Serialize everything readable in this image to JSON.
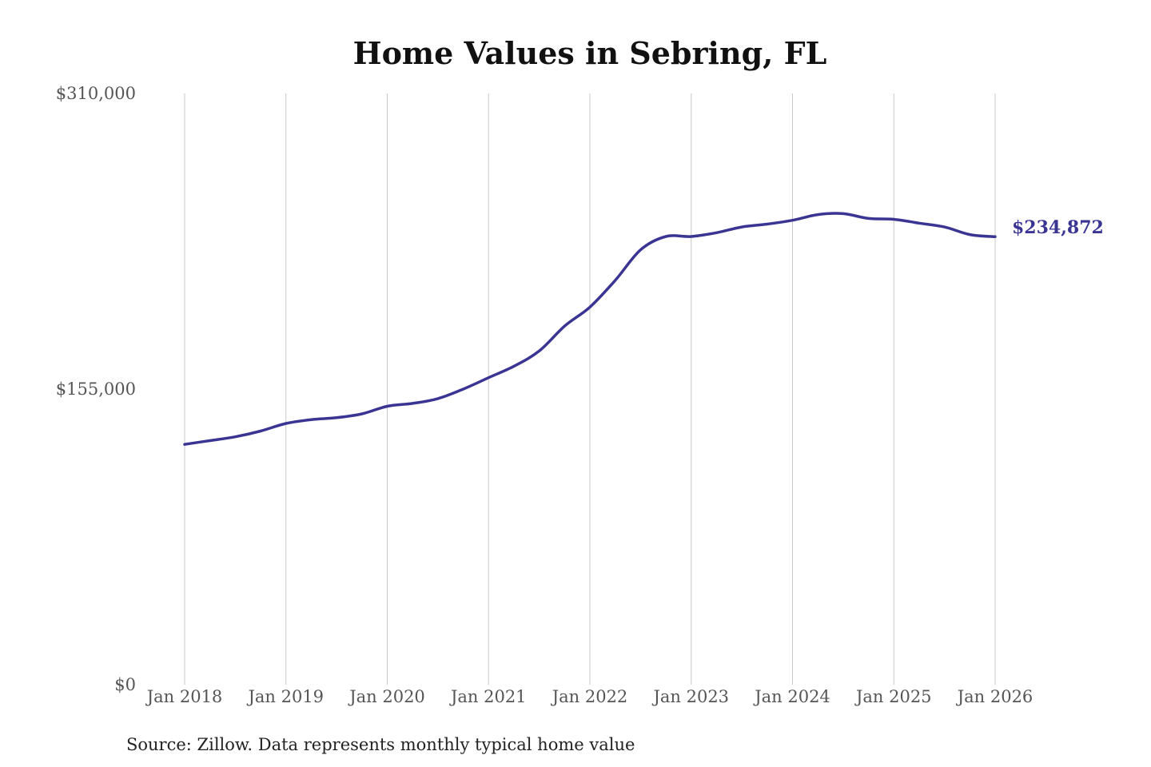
{
  "chart_data": {
    "type": "line",
    "title": "Home Values in Sebring, FL",
    "xlabel": "",
    "ylabel": "",
    "ylim": [
      0,
      310000
    ],
    "y_ticks": [
      "$0",
      "$155,000",
      "$310,000"
    ],
    "y_tick_values": [
      0,
      155000,
      310000
    ],
    "x_ticks": [
      "Jan 2018",
      "Jan 2019",
      "Jan 2020",
      "Jan 2021",
      "Jan 2022",
      "Jan 2023",
      "Jan 2024",
      "Jan 2025",
      "Jan 2026"
    ],
    "x_tick_values": [
      "2018-01",
      "2019-01",
      "2020-01",
      "2021-01",
      "2022-01",
      "2023-01",
      "2024-01",
      "2025-01",
      "2026-01"
    ],
    "grid": "vertical",
    "line_color": "#3a3593",
    "end_label": "$234,872",
    "series": [
      {
        "name": "",
        "x": [
          "2018-01",
          "2018-04",
          "2018-07",
          "2018-10",
          "2019-01",
          "2019-04",
          "2019-07",
          "2019-10",
          "2020-01",
          "2020-04",
          "2020-07",
          "2020-10",
          "2021-01",
          "2021-04",
          "2021-07",
          "2021-10",
          "2022-01",
          "2022-04",
          "2022-07",
          "2022-10",
          "2023-01",
          "2023-04",
          "2023-07",
          "2023-10",
          "2024-01",
          "2024-04",
          "2024-07",
          "2024-10",
          "2025-01",
          "2025-04",
          "2025-07",
          "2025-10",
          "2026-01"
        ],
        "values": [
          126000,
          128000,
          130000,
          133000,
          137000,
          139000,
          140000,
          142000,
          146000,
          147500,
          150000,
          155000,
          161000,
          167000,
          175000,
          188000,
          198000,
          212000,
          228000,
          235000,
          235000,
          237000,
          240000,
          241500,
          243500,
          246500,
          247000,
          244500,
          244000,
          242000,
          240000,
          236000,
          234872
        ]
      }
    ]
  },
  "source": "Source: Zillow. Data represents monthly typical home value"
}
